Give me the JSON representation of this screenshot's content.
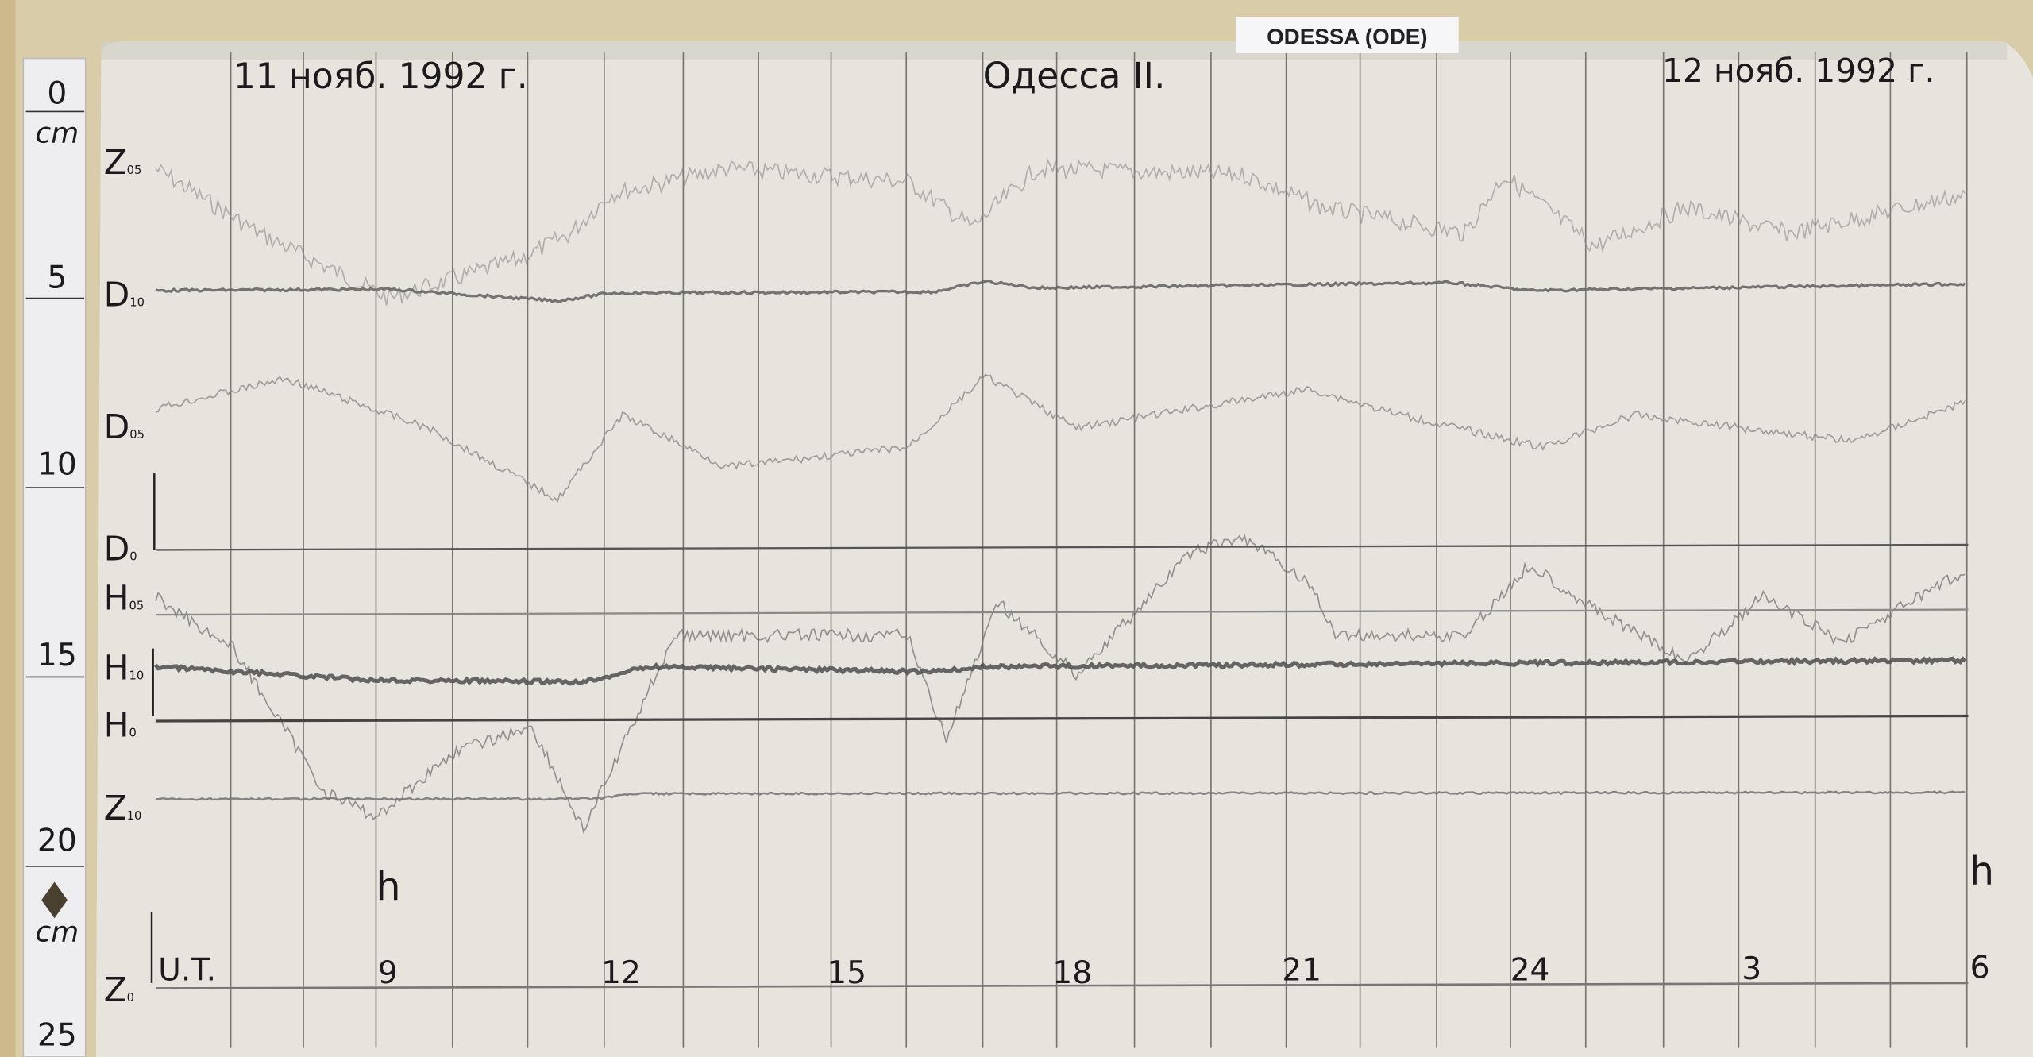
{
  "station_tag": "ODESSA (ODE)",
  "header": {
    "date_left": "11 нояб. 1992 г.",
    "station_title": "Одесса II.",
    "date_right": "12 нояб. 1992 г."
  },
  "ruler": {
    "marks": [
      "0",
      "5",
      "10",
      "15",
      "20",
      "25"
    ],
    "unit_top": "cm",
    "unit_bottom": "cm"
  },
  "trace_labels": [
    "Z05",
    "D10",
    "D05",
    "D0",
    "H05",
    "H10",
    "H0",
    "Z10",
    "Z0"
  ],
  "hour_unit": "h",
  "time_axis": {
    "label": "U.T.",
    "ticks": [
      "9",
      "12",
      "15",
      "18",
      "21",
      "24",
      "3",
      "6"
    ]
  },
  "colors": {
    "paper": "#e6e4dc",
    "wall": "#d9cfae",
    "ink": "#1c1a1c",
    "trace": "#6a6a6a"
  }
}
